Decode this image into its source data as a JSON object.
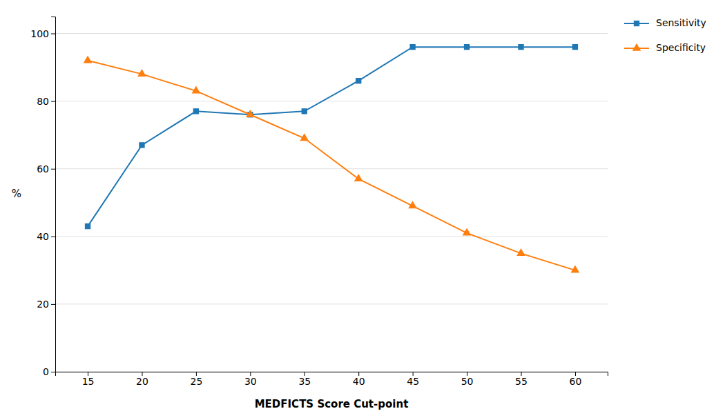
{
  "chart_data": {
    "type": "line",
    "xlabel": "MEDFICTS Score Cut-point",
    "ylabel": "%",
    "x": [
      15,
      20,
      25,
      30,
      35,
      40,
      45,
      50,
      55,
      60
    ],
    "series": [
      {
        "name": "Sensitivity",
        "marker": "square",
        "values": [
          43,
          67,
          77,
          76,
          77,
          86,
          96,
          96,
          96,
          96
        ]
      },
      {
        "name": "Specificity",
        "marker": "triangle",
        "values": [
          92,
          88,
          83,
          76,
          69,
          57,
          49,
          41,
          35,
          30
        ]
      }
    ],
    "xlim": [
      12,
      63
    ],
    "xticks": [
      15,
      20,
      25,
      30,
      35,
      40,
      45,
      50,
      55,
      60
    ],
    "ylim": [
      0,
      105
    ],
    "yticks": [
      0,
      20,
      40,
      60,
      80,
      100
    ],
    "grid": "y",
    "legend": "right"
  }
}
